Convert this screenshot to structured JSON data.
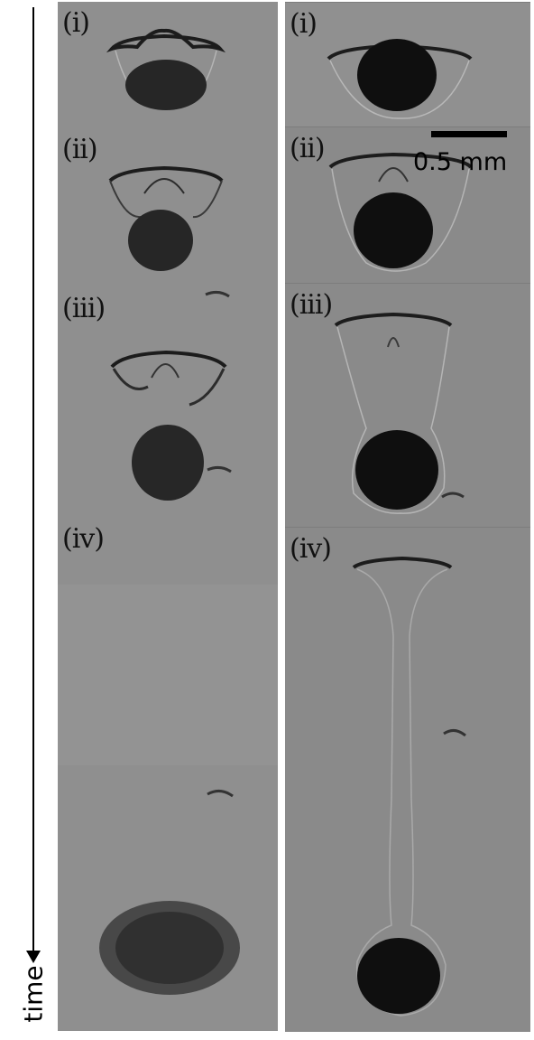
{
  "axis": {
    "label": "time"
  },
  "scale_bar": {
    "label": "0.5 mm"
  },
  "left_column": {
    "frames": [
      {
        "tag": "(i)"
      },
      {
        "tag": "(ii)"
      },
      {
        "tag": "(iii)"
      },
      {
        "tag": "(iv)"
      }
    ]
  },
  "right_column": {
    "frames": [
      {
        "tag": "(i)"
      },
      {
        "tag": "(ii)"
      },
      {
        "tag": "(iii)"
      },
      {
        "tag": "(iv)"
      }
    ]
  },
  "colors": {
    "background": "#8c8c8c",
    "particles": "#1e1e1e",
    "text": "#000000"
  }
}
